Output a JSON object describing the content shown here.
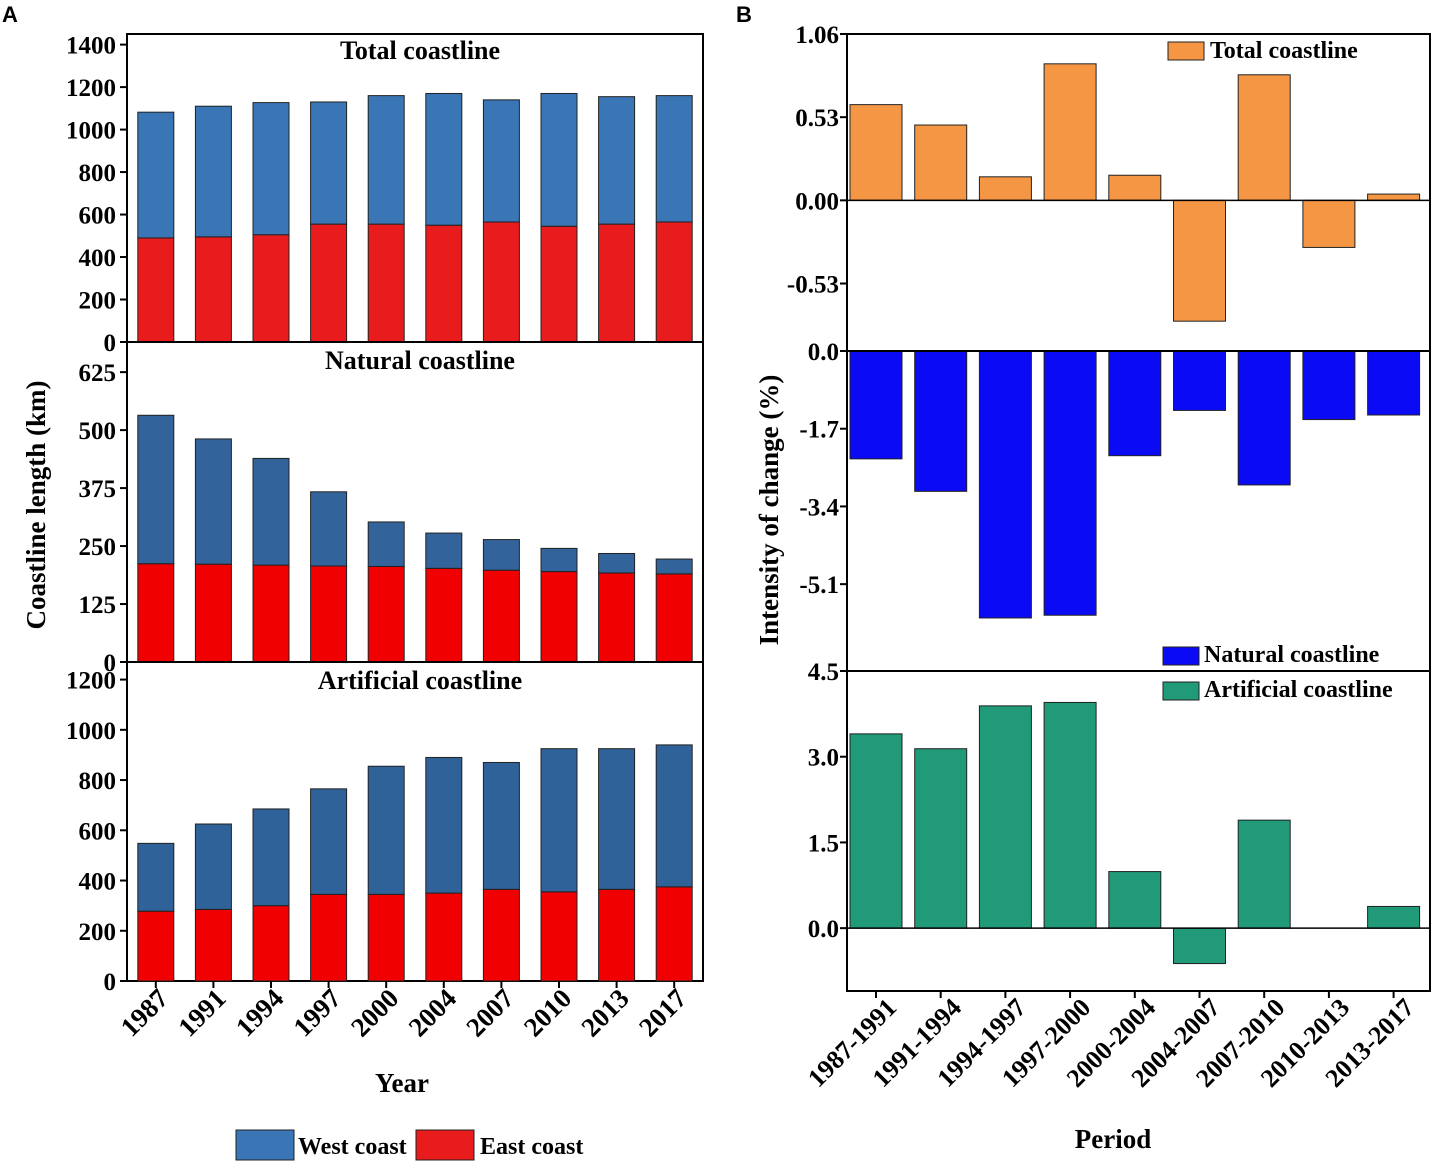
{
  "panel_labels": {
    "a": "A",
    "b": "B"
  },
  "colors": {
    "west": "#3a75b6",
    "east": "#e81c1c",
    "west_natural": "#33639b",
    "east_natural": "#f00000",
    "west_artificial": "#2f6299",
    "east_artificial": "#f00000",
    "total_change": "#f59644",
    "natural_change": "#0a0af5",
    "artificial_change": "#209a79"
  },
  "chart_data": [
    {
      "id": "A",
      "type": "bar",
      "stacked": true,
      "categories": [
        "1987",
        "1991",
        "1994",
        "1997",
        "2000",
        "2004",
        "2007",
        "2010",
        "2013",
        "2017"
      ],
      "xlabel": "Year",
      "ylabel": "Coastline length (km)",
      "legend": {
        "position": "bottom",
        "entries": [
          "West coast",
          "East coast"
        ]
      },
      "subplots": [
        {
          "title": "Total coastline",
          "ylim": [
            0,
            1450
          ],
          "yticks": [
            0,
            200,
            400,
            600,
            800,
            1000,
            1200,
            1400
          ],
          "series": [
            {
              "name": "East coast",
              "values": [
                490,
                495,
                505,
                555,
                555,
                550,
                565,
                545,
                555,
                565
              ]
            },
            {
              "name": "West coast",
              "values": [
                592,
                615,
                622,
                575,
                605,
                620,
                575,
                625,
                600,
                595
              ]
            }
          ]
        },
        {
          "title": "Natural coastline",
          "ylim": [
            0,
            690
          ],
          "yticks": [
            0,
            125,
            250,
            375,
            500,
            625
          ],
          "series": [
            {
              "name": "East coast",
              "values": [
                212,
                211,
                209,
                207,
                206,
                202,
                198,
                195,
                192,
                190
              ]
            },
            {
              "name": "West coast",
              "values": [
                320,
                270,
                230,
                160,
                96,
                76,
                66,
                50,
                42,
                32
              ]
            }
          ]
        },
        {
          "title": "Artificial coastline",
          "ylim": [
            0,
            1270
          ],
          "yticks": [
            0,
            200,
            400,
            600,
            800,
            1000,
            1200
          ],
          "series": [
            {
              "name": "East coast",
              "values": [
                278,
                285,
                300,
                345,
                345,
                350,
                365,
                355,
                365,
                375
              ]
            },
            {
              "name": "West coast",
              "values": [
                270,
                340,
                385,
                420,
                510,
                540,
                505,
                570,
                560,
                565
              ]
            }
          ]
        }
      ]
    },
    {
      "id": "B",
      "type": "bar",
      "categories": [
        "1987-1991",
        "1991-1994",
        "1994-1997",
        "1997-2000",
        "2000-2004",
        "2004-2007",
        "2007-2010",
        "2010-2013",
        "2013-2017"
      ],
      "xlabel": "Period",
      "ylabel": "Intensity of change (%)",
      "subplots": [
        {
          "name": "Total coastline",
          "legend": "top-right",
          "ylim": [
            -0.96,
            1.06
          ],
          "yticks": [
            -0.53,
            0.0,
            0.53,
            1.06
          ],
          "ytick_labels": [
            "-0.53",
            "0.00",
            "0.53",
            "1.06"
          ],
          "values": [
            0.61,
            0.48,
            0.15,
            0.87,
            0.16,
            -0.77,
            0.8,
            -0.3,
            0.04
          ]
        },
        {
          "name": "Natural coastline",
          "legend": "bottom-right",
          "ylim": [
            -7.0,
            0.0
          ],
          "yticks": [
            -5.1,
            -3.4,
            -1.7,
            0.0
          ],
          "ytick_labels": [
            "-5.1",
            "-3.4",
            "-1.7",
            "0.0"
          ],
          "values": [
            -2.36,
            -3.07,
            -5.84,
            -5.78,
            -2.29,
            -1.3,
            -2.93,
            -1.5,
            -1.4
          ]
        },
        {
          "name": "Artificial coastline",
          "legend": "top-right",
          "ylim": [
            -1.1,
            4.5
          ],
          "yticks": [
            0.0,
            1.5,
            3.0,
            4.5
          ],
          "ytick_labels": [
            "0.0",
            "1.5",
            "3.0",
            "4.5"
          ],
          "values": [
            3.4,
            3.14,
            3.89,
            3.95,
            0.99,
            -0.62,
            1.89,
            0.0,
            0.38
          ]
        }
      ]
    }
  ]
}
